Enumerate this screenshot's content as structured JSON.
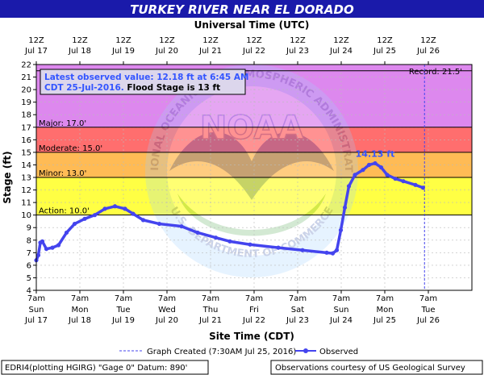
{
  "chart_data": {
    "type": "line",
    "title": "TURKEY RIVER NEAR EL DORADO",
    "top_axis_title": "Universal Time (UTC)",
    "xlabel": "Site Time (CDT)",
    "ylabel": "Stage (ft)",
    "ylim": [
      4,
      22
    ],
    "yticks": [
      4,
      5,
      6,
      7,
      8,
      9,
      10,
      11,
      12,
      13,
      14,
      15,
      16,
      17,
      18,
      19,
      20,
      21,
      22
    ],
    "xlim": [
      "2016-07-17 07:00",
      "2016-07-26 07:00"
    ],
    "top_ticks": [
      {
        "t": "12Z",
        "d": "Jul 17"
      },
      {
        "t": "12Z",
        "d": "Jul 18"
      },
      {
        "t": "12Z",
        "d": "Jul 19"
      },
      {
        "t": "12Z",
        "d": "Jul 20"
      },
      {
        "t": "12Z",
        "d": "Jul 21"
      },
      {
        "t": "12Z",
        "d": "Jul 22"
      },
      {
        "t": "12Z",
        "d": "Jul 23"
      },
      {
        "t": "12Z",
        "d": "Jul 24"
      },
      {
        "t": "12Z",
        "d": "Jul 25"
      },
      {
        "t": "12Z",
        "d": "Jul 26"
      }
    ],
    "bottom_ticks": [
      {
        "t": "7am",
        "w": "Sun",
        "d": "Jul 17"
      },
      {
        "t": "7am",
        "w": "Mon",
        "d": "Jul 18"
      },
      {
        "t": "7am",
        "w": "Tue",
        "d": "Jul 19"
      },
      {
        "t": "7am",
        "w": "Wed",
        "d": "Jul 20"
      },
      {
        "t": "7am",
        "w": "Thu",
        "d": "Jul 21"
      },
      {
        "t": "7am",
        "w": "Fri",
        "d": "Jul 22"
      },
      {
        "t": "7am",
        "w": "Sat",
        "d": "Jul 23"
      },
      {
        "t": "7am",
        "w": "Sun",
        "d": "Jul 24"
      },
      {
        "t": "7am",
        "w": "Mon",
        "d": "Jul 25"
      },
      {
        "t": "7am",
        "w": "Tue",
        "d": "Jul 26"
      }
    ],
    "flood_categories": [
      {
        "label": "Action: 10.0'",
        "from": 10,
        "to": 13,
        "color": "#ffff44"
      },
      {
        "label": "Minor: 13.0'",
        "from": 13,
        "to": 15,
        "color": "#ffbb55"
      },
      {
        "label": "Moderate: 15.0'",
        "from": 15,
        "to": 17,
        "color": "#ff6e6e"
      },
      {
        "label": "Major: 17.0'",
        "from": 17,
        "to": 22,
        "color": "#dd88ee"
      }
    ],
    "record": {
      "label": "Record: 21.5'",
      "value": 21.5
    },
    "crest_label": "14.13 ft",
    "crest": {
      "x": "2016-07-24 07:00",
      "y": 14.13
    },
    "graph_created": "2016-07-25 07:30",
    "observed": [
      {
        "x": "2016-07-17 07:00",
        "y": 6.4
      },
      {
        "x": "2016-07-17 08:00",
        "y": 6.8
      },
      {
        "x": "2016-07-17 09:00",
        "y": 7.8
      },
      {
        "x": "2016-07-17 10:00",
        "y": 7.9
      },
      {
        "x": "2016-07-17 12:00",
        "y": 7.3
      },
      {
        "x": "2016-07-17 15:00",
        "y": 7.4
      },
      {
        "x": "2016-07-17 18:00",
        "y": 7.6
      },
      {
        "x": "2016-07-17 22:00",
        "y": 8.6
      },
      {
        "x": "2016-07-18 02:00",
        "y": 9.3
      },
      {
        "x": "2016-07-18 07:00",
        "y": 9.7
      },
      {
        "x": "2016-07-18 12:00",
        "y": 10.0
      },
      {
        "x": "2016-07-18 17:00",
        "y": 10.5
      },
      {
        "x": "2016-07-18 22:00",
        "y": 10.7
      },
      {
        "x": "2016-07-19 03:00",
        "y": 10.5
      },
      {
        "x": "2016-07-19 07:00",
        "y": 10.1
      },
      {
        "x": "2016-07-19 12:00",
        "y": 9.6
      },
      {
        "x": "2016-07-19 20:00",
        "y": 9.3
      },
      {
        "x": "2016-07-20 07:00",
        "y": 9.1
      },
      {
        "x": "2016-07-20 15:00",
        "y": 8.6
      },
      {
        "x": "2016-07-21 00:00",
        "y": 8.2
      },
      {
        "x": "2016-07-21 07:00",
        "y": 7.9
      },
      {
        "x": "2016-07-21 17:00",
        "y": 7.65
      },
      {
        "x": "2016-07-22 07:00",
        "y": 7.4
      },
      {
        "x": "2016-07-22 19:00",
        "y": 7.2
      },
      {
        "x": "2016-07-23 07:00",
        "y": 7.0
      },
      {
        "x": "2016-07-23 10:00",
        "y": 6.95
      },
      {
        "x": "2016-07-23 12:00",
        "y": 7.2
      },
      {
        "x": "2016-07-23 14:00",
        "y": 8.8
      },
      {
        "x": "2016-07-23 16:00",
        "y": 10.6
      },
      {
        "x": "2016-07-23 18:00",
        "y": 12.3
      },
      {
        "x": "2016-07-23 21:00",
        "y": 13.2
      },
      {
        "x": "2016-07-24 01:00",
        "y": 13.6
      },
      {
        "x": "2016-07-24 04:00",
        "y": 14.0
      },
      {
        "x": "2016-07-24 07:00",
        "y": 14.13
      },
      {
        "x": "2016-07-24 10:00",
        "y": 13.8
      },
      {
        "x": "2016-07-24 13:00",
        "y": 13.2
      },
      {
        "x": "2016-07-24 17:00",
        "y": 12.9
      },
      {
        "x": "2016-07-24 21:00",
        "y": 12.7
      },
      {
        "x": "2016-07-25 03:00",
        "y": 12.4
      },
      {
        "x": "2016-07-25 06:45",
        "y": 12.18
      }
    ]
  },
  "info_box": {
    "line1": "Latest observed value: 12.18 ft at 6:45 AM",
    "line2_blue": "CDT 25-Jul-2016.",
    "line2_black": " Flood Stage is 13 ft"
  },
  "watermark": {
    "logo_text": "NOAA",
    "ring_top": "NATIONAL OCEANIC AND ATMOSPHERIC ADMINISTRATION",
    "ring_bottom": "U.S. DEPARTMENT OF COMMERCE"
  },
  "legend": {
    "graph_created_label": "Graph Created (7:30AM Jul 25, 2016)",
    "observed_label": "Observed"
  },
  "footer": {
    "left": "EDRI4(plotting HGIRG) \"Gage 0\" Datum: 890'",
    "right": "Observations courtesy of US Geological Survey"
  },
  "colors": {
    "title_bar": "#1a1aaa",
    "observed": "#4444ee",
    "crest_label": "#3355ff",
    "info_blue": "#3355ff",
    "graph_created_line": "#4444ee"
  }
}
